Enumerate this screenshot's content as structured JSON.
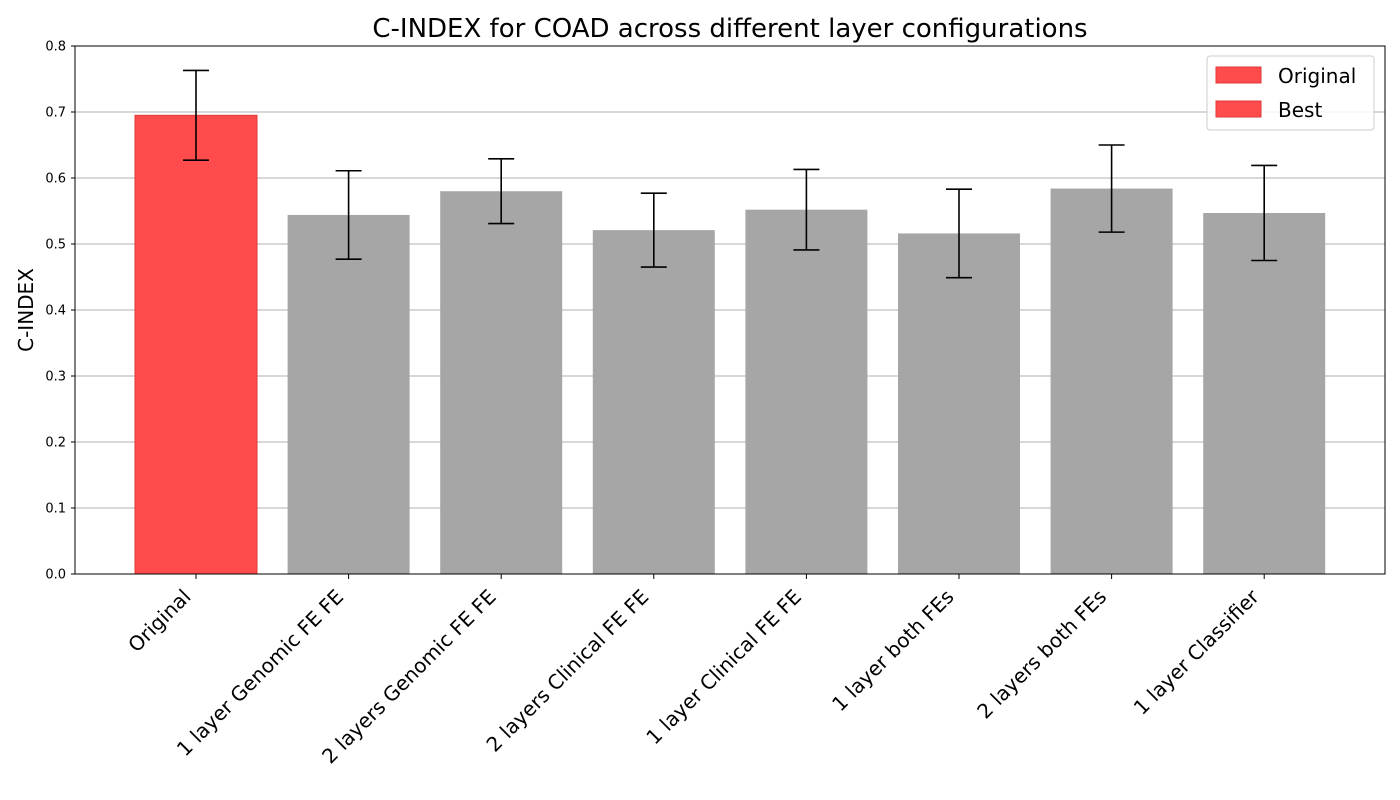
{
  "chart_data": {
    "type": "bar",
    "title": "C-INDEX for COAD across different layer configurations",
    "xlabel": "",
    "ylabel": "C-INDEX",
    "ylim": [
      0,
      0.8
    ],
    "yticks": [
      "0.0",
      "0.1",
      "0.2",
      "0.3",
      "0.4",
      "0.5",
      "0.6",
      "0.7",
      "0.8"
    ],
    "grid": "y-major",
    "legend_position": "top-right",
    "legend": [
      {
        "label": "Original",
        "color": "#ff4b4b"
      },
      {
        "label": "Best",
        "color": "#ff4b4b"
      }
    ],
    "categories": [
      "Original",
      "1 layer Genomic FE FE",
      "2 layers Genomic FE FE",
      "2 layers Clinical FE FE",
      "1 layer Clinical FE FE",
      "1 layer both FEs",
      "2 layers both FEs",
      "1 layer Classifier"
    ],
    "values": [
      0.695,
      0.544,
      0.58,
      0.521,
      0.552,
      0.516,
      0.584,
      0.547
    ],
    "errors": [
      0.068,
      0.067,
      0.049,
      0.056,
      0.061,
      0.067,
      0.066,
      0.072
    ],
    "bar_colors": [
      "#ff4b4b",
      "#a6a6a6",
      "#a6a6a6",
      "#a6a6a6",
      "#a6a6a6",
      "#a6a6a6",
      "#a6a6a6",
      "#a6a6a6"
    ]
  }
}
